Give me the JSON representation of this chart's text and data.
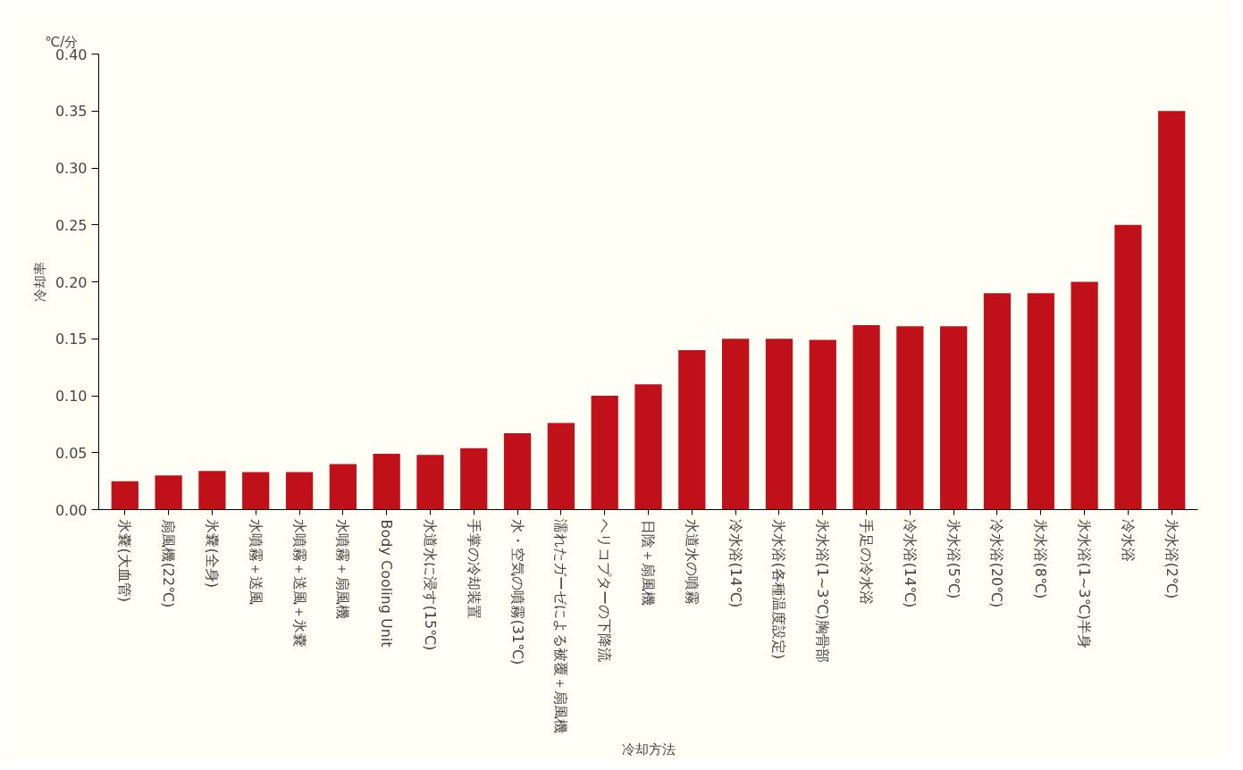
{
  "chart_data": {
    "type": "bar",
    "xlabel": "冷却方法",
    "ylabel": "冷却率",
    "annotations": [
      "℃/分"
    ],
    "categories": [
      "氷嚢(大血管)",
      "扇風機(22℃)",
      "氷嚢(全身)",
      "水噴霧＋送風",
      "水噴霧＋送風＋氷嚢",
      "水噴霧＋扇風機",
      "Body Cooling Unit",
      "水道水に浸す(15℃)",
      "手掌の冷却装置",
      "水・空気の噴霧(31℃)",
      "濡れたガーゼによる被覆＋扇風機",
      "ヘリコプターの下降流",
      "日陰＋扇風機",
      "水道水の噴霧",
      "冷水浴(14℃)",
      "氷水浴(各種温度設定)",
      "氷水浴(1~3℃)胸骨部",
      "手足の冷水浴",
      "冷水浴(14℃)",
      "氷水浴(5℃)",
      "冷水浴(20℃)",
      "氷水浴(8℃)",
      "氷水浴(1~3℃)半身",
      "冷水浴",
      "氷水浴(2℃)"
    ],
    "values": [
      0.025,
      0.03,
      0.034,
      0.033,
      0.033,
      0.04,
      0.049,
      0.048,
      0.054,
      0.067,
      0.076,
      0.1,
      0.11,
      0.14,
      0.15,
      0.15,
      0.149,
      0.162,
      0.161,
      0.161,
      0.19,
      0.19,
      0.2,
      0.25,
      0.35
    ],
    "color": "#c0101a",
    "ylim": [
      0,
      0.4
    ],
    "yticks": [
      {
        "value": 0,
        "label": "0.00"
      },
      0.05,
      {
        "value": 0.1,
        "label": "0.10"
      },
      0.15,
      {
        "value": 0.2,
        "label": "0.20"
      },
      0.25,
      {
        "value": 0.3,
        "label": "0.30"
      },
      0.35,
      {
        "value": 0.4,
        "label": "0.40"
      }
    ],
    "grid": false
  }
}
